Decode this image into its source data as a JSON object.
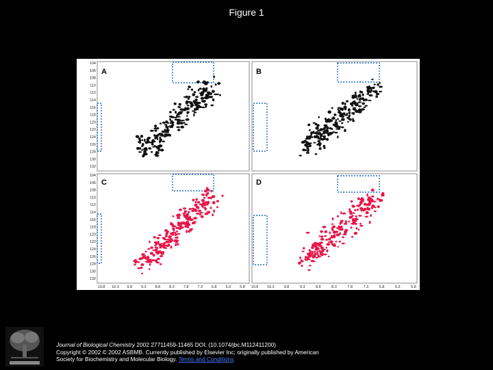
{
  "page": {
    "title": "Figure 1"
  },
  "figure": {
    "panels": [
      {
        "label": "A",
        "color": "#111111"
      },
      {
        "label": "B",
        "color": "#111111"
      },
      {
        "label": "C",
        "color": "#e8174a"
      },
      {
        "label": "D",
        "color": "#e8174a"
      }
    ],
    "y_ticks_top": [
      "104",
      "106",
      "108",
      "110",
      "112",
      "114",
      "116",
      "118",
      "120",
      "122",
      "124",
      "126",
      "128",
      "130",
      "132"
    ],
    "y_ticks_bottom": [
      "104",
      "106",
      "108",
      "110",
      "112",
      "114",
      "116",
      "118",
      "120",
      "122",
      "124",
      "126",
      "128",
      "130",
      "132"
    ],
    "x_ticks_left": [
      "10.8",
      "10.3",
      "9.8",
      "9.3",
      "8.8",
      "8.3",
      "7.8",
      "7.3",
      "6.8",
      "6.3",
      "5.8"
    ],
    "x_ticks_right": [
      "10.8",
      "10.3",
      "9.8",
      "9.3",
      "8.8",
      "8.3",
      "7.8",
      "7.3",
      "6.8",
      "6.3",
      "5.8"
    ],
    "highlight_box_color": "#1a66cc"
  },
  "footer": {
    "journal": "Journal of Biological Chemistry",
    "citation_rest": " 2002 27711459-11465 DOI: (10.1074/jbc.M112411200)",
    "copyright_line": "Copyright © 2002 © 2002 ASBMB. Currently published by Elsevier Inc; originally published by American",
    "society_line": "Society for Biochemistry and Molecular Biology.",
    "terms_link": "Terms and Conditions",
    "publisher_logo": "elsevier-tree-logo"
  }
}
